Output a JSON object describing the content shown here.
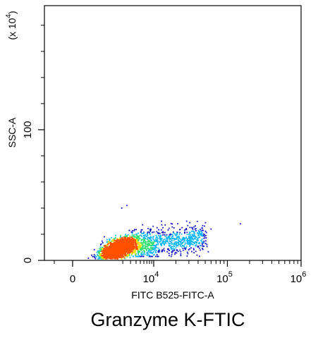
{
  "chart_data": {
    "type": "scatter",
    "xlabel": "FITC B525-FITC-A",
    "ylabel": "SSC-A",
    "y_multiplier_label": "(x 10",
    "y_multiplier_exp": "4",
    "x_scale": "biexponential",
    "ylim": [
      0,
      195
    ],
    "x_ticks": [
      {
        "value": 0,
        "base": "0",
        "exp": ""
      },
      {
        "value": 10000,
        "base": "10",
        "exp": "4"
      },
      {
        "value": 100000,
        "base": "10",
        "exp": "5"
      },
      {
        "value": 1000000,
        "base": "10",
        "exp": "6"
      }
    ],
    "y_ticks": [
      {
        "value": 0,
        "label": "0"
      },
      {
        "value": 100,
        "label": "100"
      }
    ],
    "caption": "Granzyme K-FTIC",
    "colors": {
      "low_density": "#1010c8",
      "mid_density": "#00b4ff",
      "high_density": "#30e070",
      "peak_density": "#f0e000",
      "core_density": "#ff5000",
      "axis": "#000000"
    },
    "populations": [
      {
        "name": "main",
        "x_center": 1500,
        "y_center": 8,
        "x_spread": 1100,
        "y_spread": 6,
        "count": 2600
      },
      {
        "name": "tail",
        "x_range": [
          3000,
          50000
        ],
        "y_range": [
          8,
          28
        ],
        "count": 900
      }
    ]
  }
}
